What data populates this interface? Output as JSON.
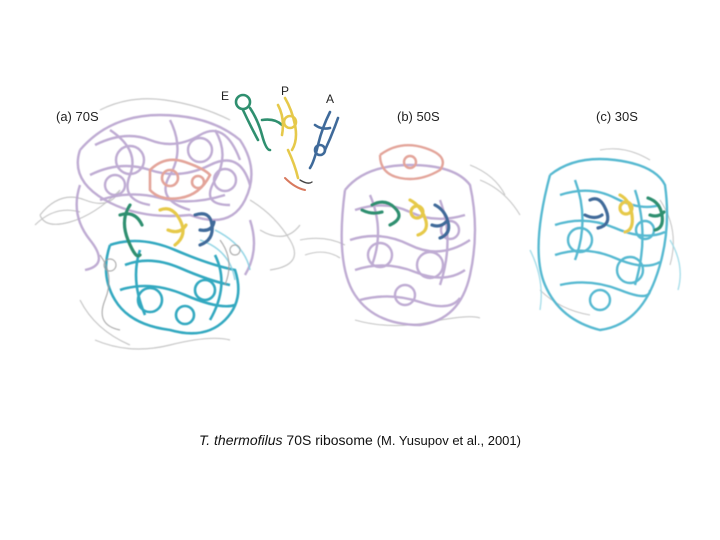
{
  "panels": {
    "a_label": "(a) 70S",
    "b_label": "(b) 50S",
    "c_label": "(c) 30S"
  },
  "trna_sites": {
    "e": "E",
    "p": "P",
    "a": "A"
  },
  "caption": {
    "species": "T. thermofilus",
    "description": " 70S ribosome ",
    "reference": "(M. Yusupov et al., 2001)"
  },
  "colors": {
    "subunit_50S": "#b9a3cf",
    "subunit_30S": "#4fb6cf",
    "trna_E": "#2f8f6f",
    "trna_P": "#e6c94a",
    "trna_A": "#3f6a9a",
    "proteins": "#b5b5b5",
    "l1_stalk": "#e3a49a"
  }
}
